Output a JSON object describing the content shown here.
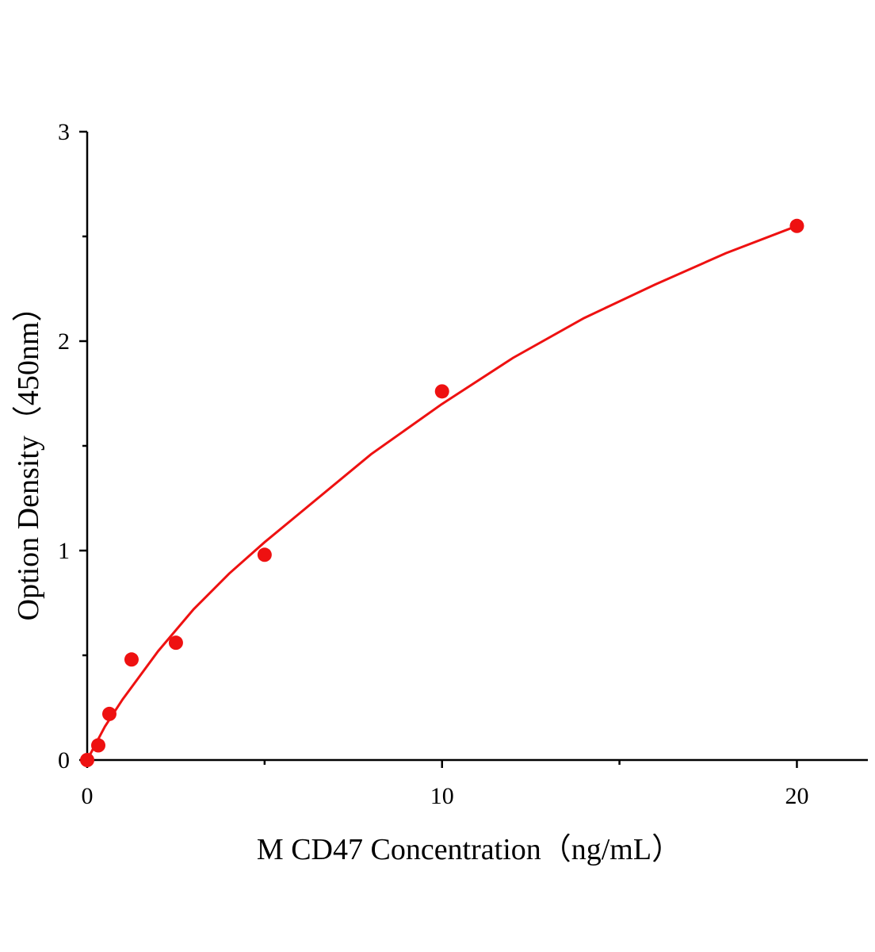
{
  "chart_data": {
    "type": "scatter",
    "x_label": "M CD47 Concentration（ng/mL）",
    "y_label": "Option Density（450nm）",
    "xlim": [
      0,
      22
    ],
    "xticks": [
      0,
      10,
      20
    ],
    "xminor": [
      5,
      15
    ],
    "ylim": [
      0,
      3
    ],
    "yticks": [
      0,
      1,
      2,
      3
    ],
    "yminor": [
      0.5,
      1.5,
      2.5
    ],
    "series": [
      {
        "color": "#ee1111",
        "x": [
          0,
          0.3125,
          0.625,
          1.25,
          2.5,
          5,
          10,
          20
        ],
        "values": [
          0,
          0.07,
          0.22,
          0.48,
          0.56,
          0.98,
          1.76,
          2.55
        ]
      },
      {
        "type": "line",
        "color": "#ee1111",
        "x": [
          0,
          0.5,
          1,
          2,
          3,
          4,
          5,
          6,
          8,
          10,
          12,
          14,
          16,
          18,
          20
        ],
        "values": [
          0,
          0.16,
          0.29,
          0.52,
          0.72,
          0.89,
          1.04,
          1.18,
          1.46,
          1.7,
          1.92,
          2.11,
          2.27,
          2.42,
          2.55
        ]
      }
    ]
  }
}
